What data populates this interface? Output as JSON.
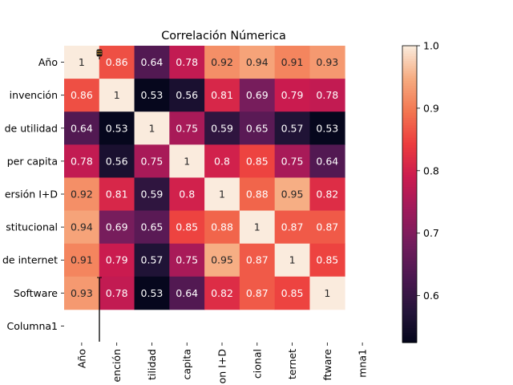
{
  "chart_data": {
    "type": "heatmap",
    "title": "Correlación Númerica",
    "xlabel": "",
    "ylabel": "",
    "row_labels": [
      "Año",
      "invención",
      "de utilidad",
      "per capita",
      "ersión I+D",
      "stitucional",
      "de internet",
      "Software",
      "Columna1"
    ],
    "col_labels": [
      "Año",
      "ención",
      "tilidad",
      "capita",
      "on I+D",
      "cional",
      "ternet",
      "ftware",
      "mna1"
    ],
    "values": [
      [
        1,
        0.86,
        0.64,
        0.78,
        0.92,
        0.94,
        0.91,
        0.93,
        null
      ],
      [
        0.86,
        1,
        0.53,
        0.56,
        0.81,
        0.69,
        0.79,
        0.78,
        null
      ],
      [
        0.64,
        0.53,
        1,
        0.75,
        0.59,
        0.65,
        0.57,
        0.53,
        null
      ],
      [
        0.78,
        0.56,
        0.75,
        1,
        0.8,
        0.85,
        0.75,
        0.64,
        null
      ],
      [
        0.92,
        0.81,
        0.59,
        0.8,
        1,
        0.88,
        0.95,
        0.82,
        null
      ],
      [
        0.94,
        0.69,
        0.65,
        0.85,
        0.88,
        1,
        0.87,
        0.87,
        null
      ],
      [
        0.91,
        0.79,
        0.57,
        0.75,
        0.95,
        0.87,
        1,
        0.85,
        null
      ],
      [
        0.93,
        0.78,
        0.53,
        0.64,
        0.82,
        0.87,
        0.85,
        1,
        null
      ],
      [
        null,
        null,
        null,
        null,
        null,
        null,
        null,
        null,
        null
      ]
    ],
    "color_scale": {
      "name": "rocket",
      "vmin": 0.525,
      "vmax": 1.0,
      "ticks": [
        0.6,
        0.7,
        0.8,
        0.9,
        1.0
      ],
      "tick_labels": [
        "0.6",
        "0.7",
        "0.8",
        "0.9",
        "1.0"
      ]
    },
    "annotations": true,
    "grid": false
  }
}
